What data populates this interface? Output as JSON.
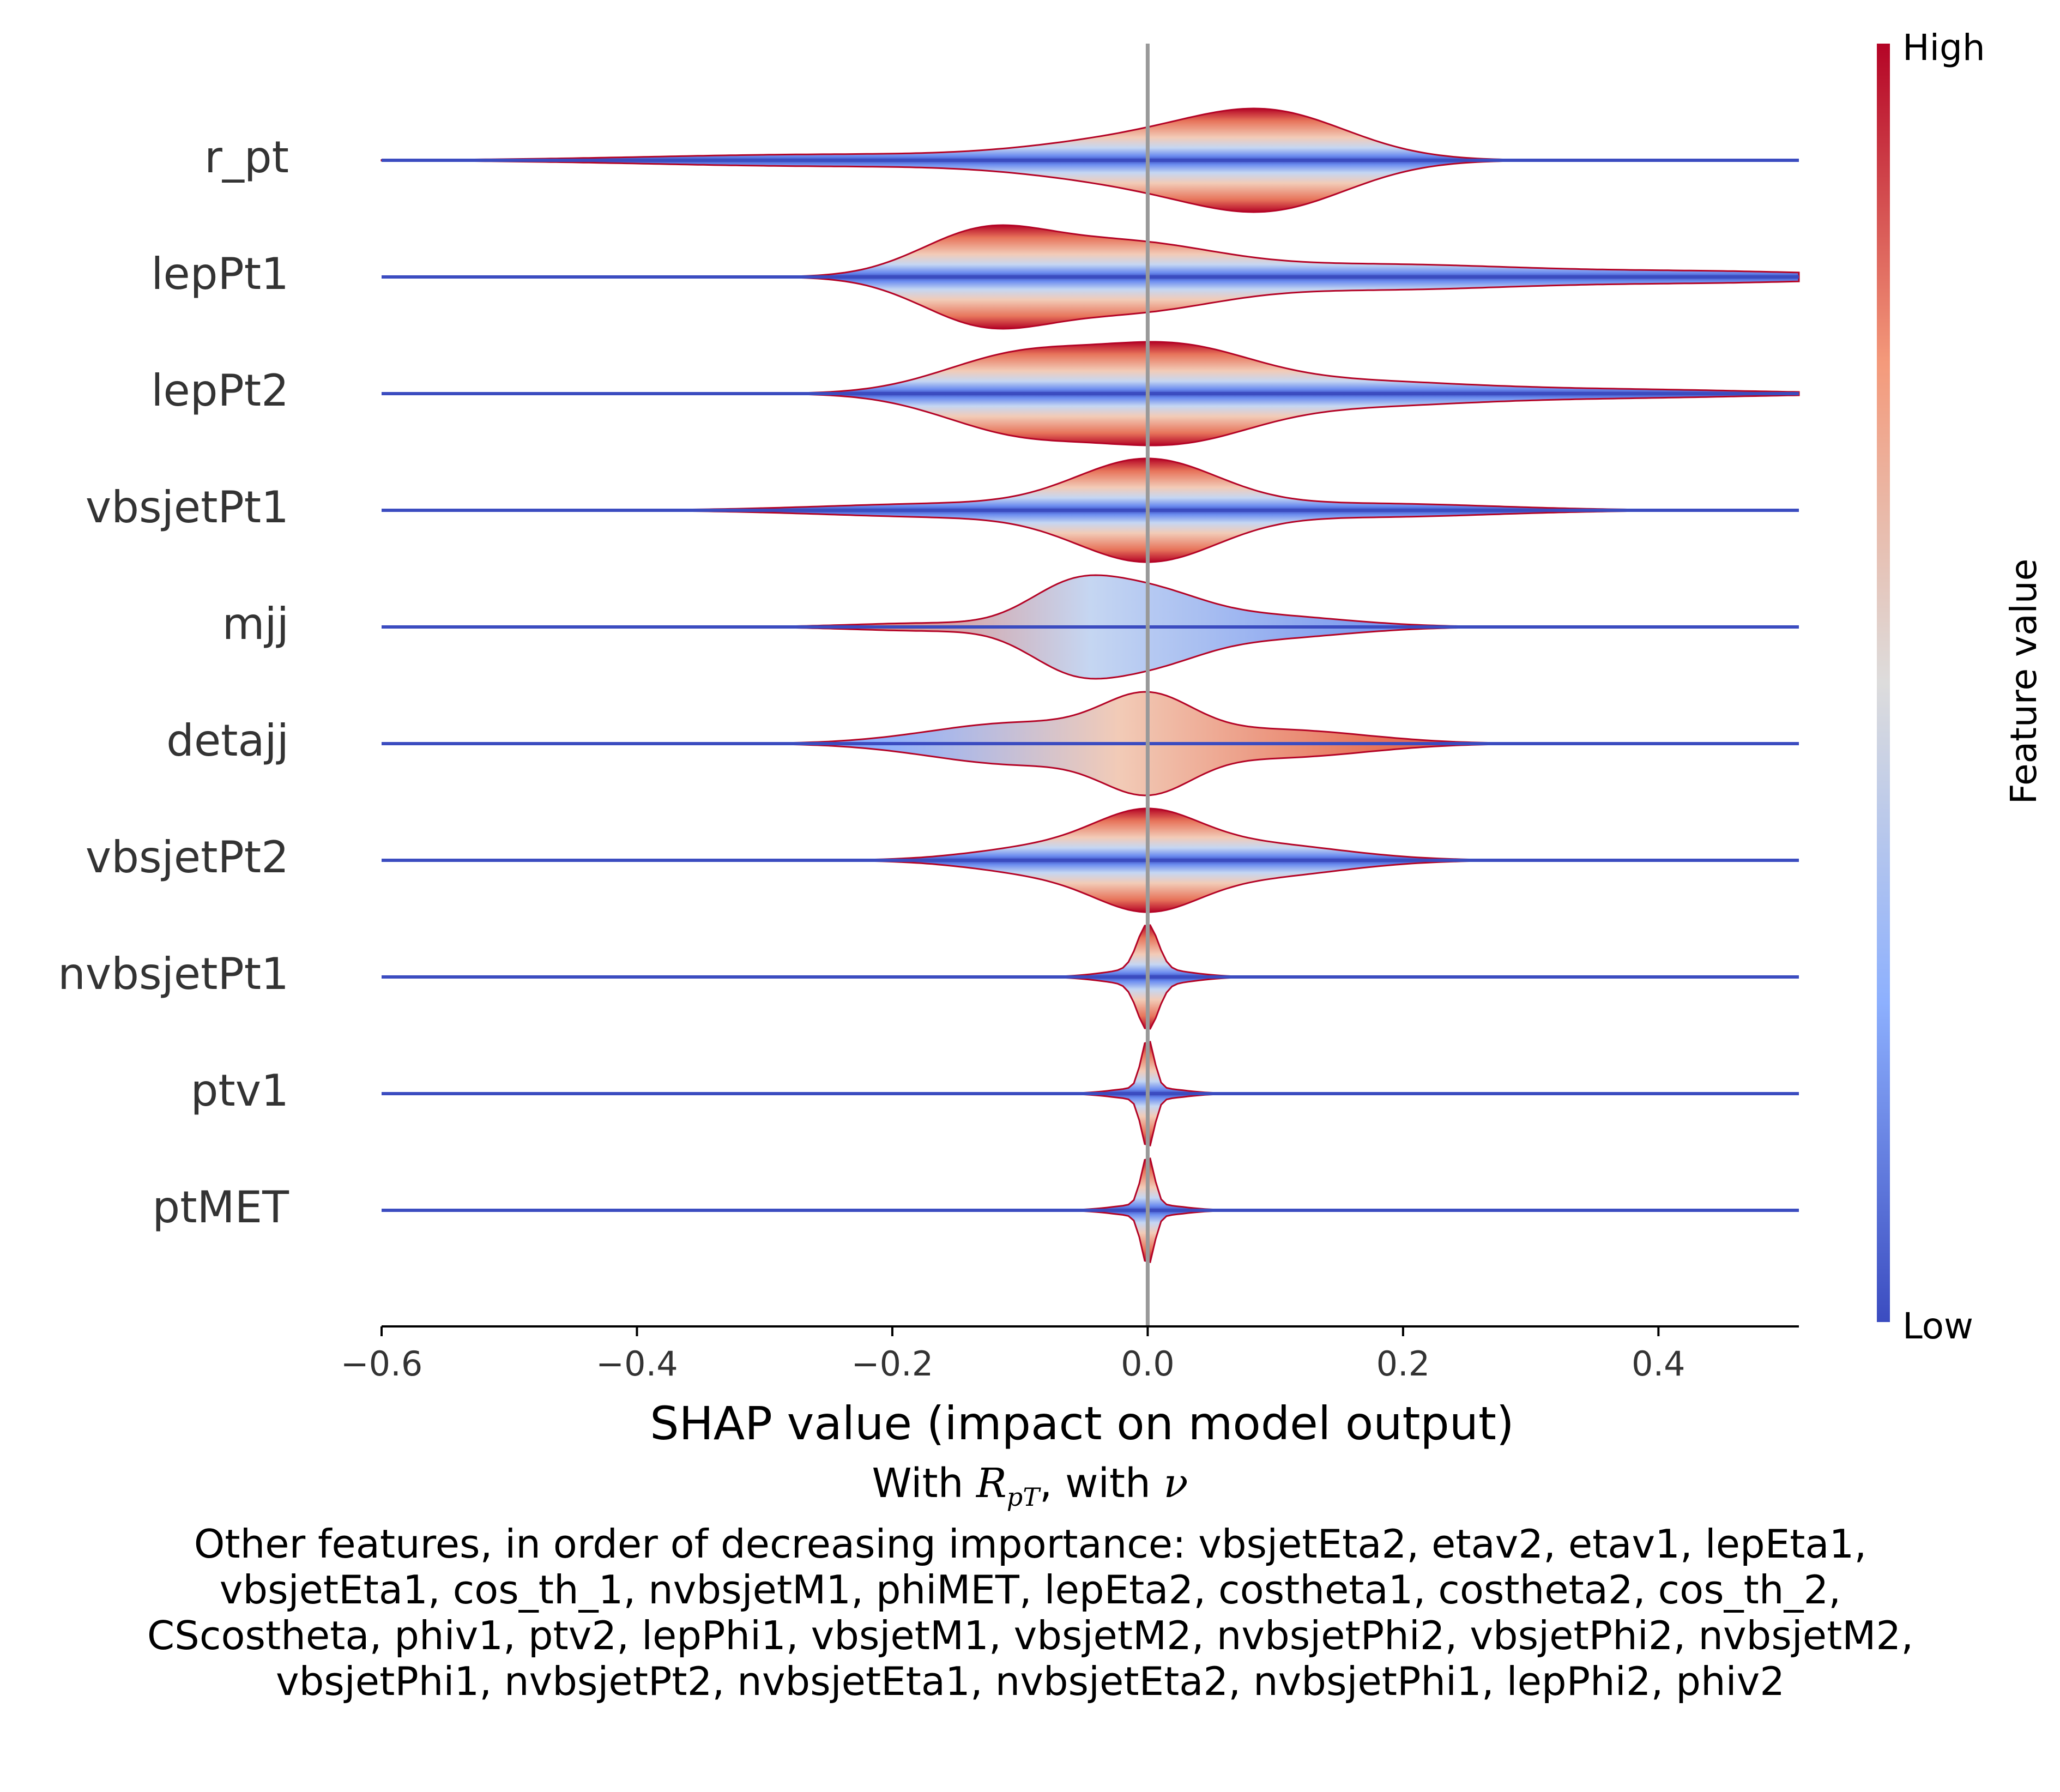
{
  "chart_data": {
    "type": "layered_violin",
    "xlabel": "SHAP value (impact on model output)",
    "subtitle": {
      "prefix": "With ",
      "symbol": "R",
      "symbol_sub": "pT",
      "middle": ", with ",
      "nu": "ν"
    },
    "xlim": [
      -0.6,
      0.51
    ],
    "xticks": [
      -0.6,
      -0.4,
      -0.2,
      0.0,
      0.2,
      0.4
    ],
    "xtick_labels": [
      "−0.6",
      "−0.4",
      "−0.2",
      "0.0",
      "0.2",
      "0.4"
    ],
    "zero_line": true,
    "colorbar": {
      "title": "Feature value",
      "high_label": "High",
      "low_label": "Low",
      "colormap": "coolwarm",
      "low_color": "#3b4cc0",
      "mid_color": "#dddcdc",
      "high_color": "#b40426"
    },
    "features": [
      {
        "name": "r_pt",
        "peak_x": 0.1,
        "lobes": [
          {
            "c": 0.02,
            "s": 0.09,
            "a": 0.5
          },
          {
            "c": 0.1,
            "s": 0.06,
            "a": 0.7
          },
          {
            "c": -0.25,
            "s": 0.14,
            "a": 0.12
          }
        ],
        "gradient": "high_right"
      },
      {
        "name": "lepPt1",
        "peak_x": -0.12,
        "lobes": [
          {
            "c": -0.13,
            "s": 0.05,
            "a": 0.65
          },
          {
            "c": -0.02,
            "s": 0.07,
            "a": 0.5
          },
          {
            "c": 0.18,
            "s": 0.12,
            "a": 0.2
          },
          {
            "c": 0.45,
            "s": 0.1,
            "a": 0.08
          }
        ],
        "gradient": "high_right"
      },
      {
        "name": "lepPt2",
        "peak_x": -0.05,
        "lobes": [
          {
            "c": -0.1,
            "s": 0.06,
            "a": 0.6
          },
          {
            "c": 0.02,
            "s": 0.06,
            "a": 0.65
          },
          {
            "c": 0.15,
            "s": 0.1,
            "a": 0.2
          },
          {
            "c": 0.38,
            "s": 0.1,
            "a": 0.06
          }
        ],
        "gradient": "high_right"
      },
      {
        "name": "vbsjetPt1",
        "peak_x": 0.0,
        "lobes": [
          {
            "c": 0.0,
            "s": 0.055,
            "a": 0.85
          },
          {
            "c": -0.15,
            "s": 0.1,
            "a": 0.12
          },
          {
            "c": 0.17,
            "s": 0.1,
            "a": 0.12
          }
        ],
        "gradient": "high_right"
      },
      {
        "name": "mjj",
        "peak_x": -0.06,
        "lobes": [
          {
            "c": -0.06,
            "s": 0.035,
            "a": 0.75
          },
          {
            "c": 0.0,
            "s": 0.04,
            "a": 0.6
          },
          {
            "c": 0.08,
            "s": 0.07,
            "a": 0.25
          },
          {
            "c": -0.17,
            "s": 0.06,
            "a": 0.08
          }
        ],
        "gradient": "high_left"
      },
      {
        "name": "detajj",
        "peak_x": 0.0,
        "lobes": [
          {
            "c": 0.0,
            "s": 0.035,
            "a": 0.85
          },
          {
            "c": -0.1,
            "s": 0.07,
            "a": 0.45
          },
          {
            "c": 0.1,
            "s": 0.07,
            "a": 0.3
          }
        ],
        "gradient": "high_right"
      },
      {
        "name": "vbsjetPt2",
        "peak_x": 0.0,
        "lobes": [
          {
            "c": 0.0,
            "s": 0.04,
            "a": 0.75
          },
          {
            "c": -0.07,
            "s": 0.06,
            "a": 0.3
          },
          {
            "c": 0.08,
            "s": 0.07,
            "a": 0.35
          }
        ],
        "gradient": "high_right"
      },
      {
        "name": "nvbsjetPt1",
        "peak_x": 0.0,
        "lobes": [
          {
            "c": 0.0,
            "s": 0.008,
            "a": 0.8
          },
          {
            "c": 0.0,
            "s": 0.03,
            "a": 0.15
          }
        ],
        "gradient": "high_right"
      },
      {
        "name": "ptv1",
        "peak_x": 0.0,
        "lobes": [
          {
            "c": 0.0,
            "s": 0.005,
            "a": 0.8
          },
          {
            "c": 0.0,
            "s": 0.025,
            "a": 0.1
          }
        ],
        "gradient": "high_right"
      },
      {
        "name": "ptMET",
        "peak_x": 0.0,
        "lobes": [
          {
            "c": 0.0,
            "s": 0.005,
            "a": 0.8
          },
          {
            "c": 0.0,
            "s": 0.025,
            "a": 0.1
          }
        ],
        "gradient": "high_right"
      }
    ],
    "other_features_text": "Other features, in order of decreasing importance: vbsjetEta2, etav2, etav1, lepEta1, vbsjetEta1, cos_th_1, nvbsjetM1, phiMET, lepEta2, costheta1, costheta2, cos_th_2, CScostheta, phiv1, ptv2, lepPhi1, vbsjetM1, vbsjetM2, nvbsjetPhi2, vbsjetPhi2, nvbsjetM2, vbsjetPhi1, nvbsjetPt2, nvbsjetEta1, nvbsjetEta2, nvbsjetPhi1, lepPhi2, phiv2"
  }
}
